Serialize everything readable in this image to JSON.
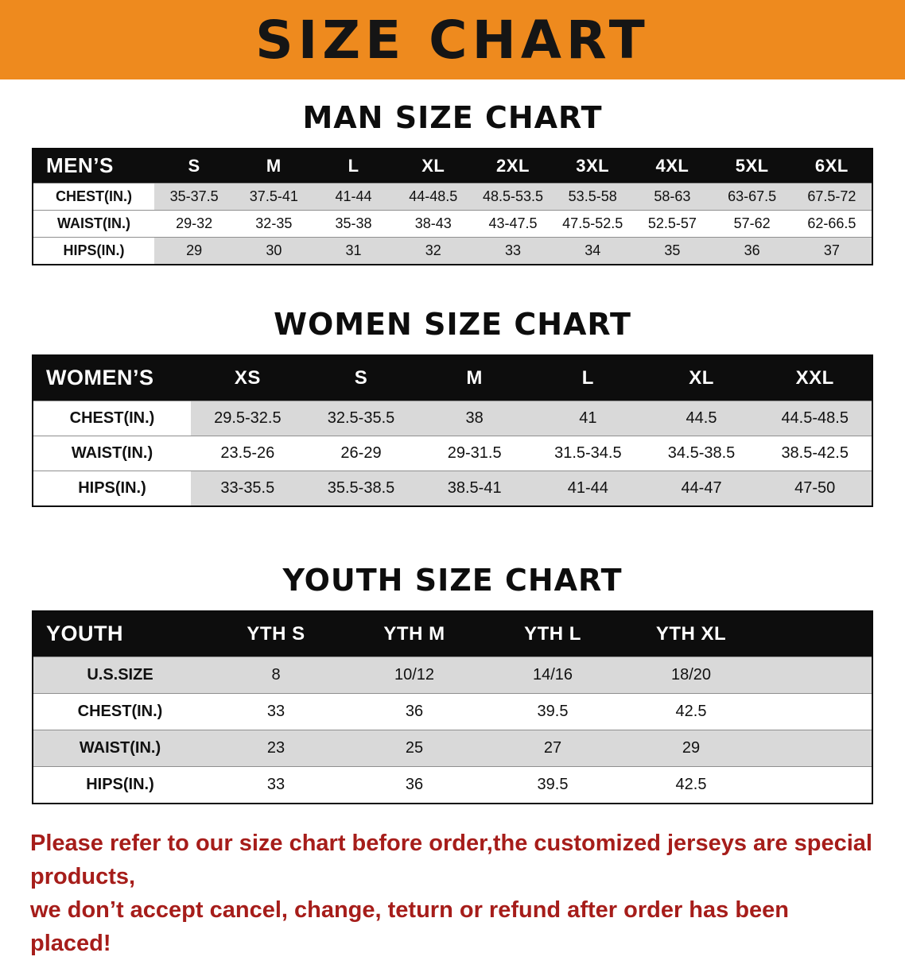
{
  "banner": {
    "title": "SIZE CHART",
    "bg_color": "#ee8a1e"
  },
  "sections": [
    {
      "id": "men",
      "heading": "MAN SIZE CHART",
      "table": {
        "header": [
          "MEN’S",
          "S",
          "M",
          "L",
          "XL",
          "2XL",
          "3XL",
          "4XL",
          "5XL",
          "6XL"
        ],
        "rows": [
          [
            "CHEST(IN.)",
            "35-37.5",
            "37.5-41",
            "41-44",
            "44-48.5",
            "48.5-53.5",
            "53.5-58",
            "58-63",
            "63-67.5",
            "67.5-72"
          ],
          [
            "WAIST(IN.)",
            "29-32",
            "32-35",
            "35-38",
            "38-43",
            "43-47.5",
            "47.5-52.5",
            "52.5-57",
            "57-62",
            "62-66.5"
          ],
          [
            "HIPS(IN.)",
            "29",
            "30",
            "31",
            "32",
            "33",
            "34",
            "35",
            "36",
            "37"
          ]
        ]
      }
    },
    {
      "id": "women",
      "heading": "WOMEN SIZE CHART",
      "table": {
        "header": [
          "WOMEN’S",
          "XS",
          "S",
          "M",
          "L",
          "XL",
          "XXL"
        ],
        "rows": [
          [
            "CHEST(IN.)",
            "29.5-32.5",
            "32.5-35.5",
            "38",
            "41",
            "44.5",
            "44.5-48.5"
          ],
          [
            "WAIST(IN.)",
            "23.5-26",
            "26-29",
            "29-31.5",
            "31.5-34.5",
            "34.5-38.5",
            "38.5-42.5"
          ],
          [
            "HIPS(IN.)",
            "33-35.5",
            "35.5-38.5",
            "38.5-41",
            "41-44",
            "44-47",
            "47-50"
          ]
        ]
      }
    },
    {
      "id": "youth",
      "heading": "YOUTH SIZE CHART",
      "table": {
        "header": [
          "YOUTH",
          "YTH S",
          "YTH M",
          "YTH L",
          "YTH XL"
        ],
        "rows": [
          [
            "U.S.SIZE",
            "8",
            "10/12",
            "14/16",
            "18/20"
          ],
          [
            "CHEST(IN.)",
            "33",
            "36",
            "39.5",
            "42.5"
          ],
          [
            "WAIST(IN.)",
            "23",
            "25",
            "27",
            "29"
          ],
          [
            "HIPS(IN.)",
            "33",
            "36",
            "39.5",
            "42.5"
          ]
        ]
      }
    }
  ],
  "footer": {
    "line1": "Please refer to our size chart before order,the customized jerseys are special products,",
    "line2": "we don’t accept cancel, change, teturn or refund after order has been placed!",
    "text_color": "#a61d1a"
  }
}
